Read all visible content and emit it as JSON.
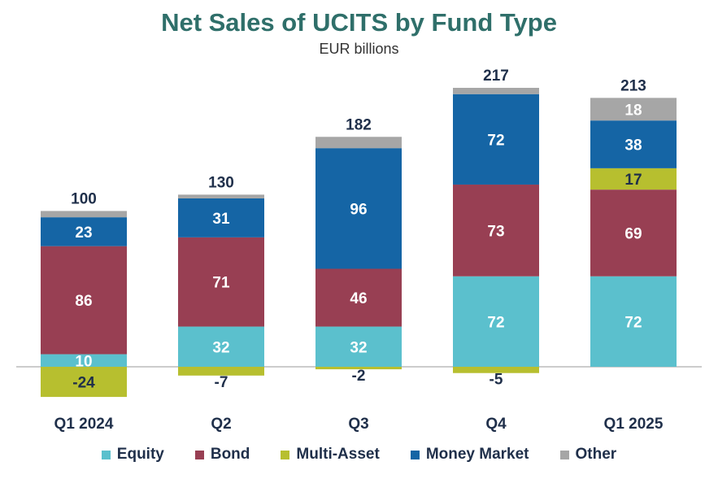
{
  "chart_data": {
    "type": "bar",
    "stacked": true,
    "title": "Net Sales of UCITS by Fund Type",
    "subtitle": "EUR billions",
    "categories": [
      "Q1 2024",
      "Q2",
      "Q3",
      "Q4",
      "Q1 2025"
    ],
    "series": [
      {
        "name": "Equity",
        "color": "#5bc0cd",
        "values": [
          10,
          32,
          32,
          72,
          72
        ],
        "labels": [
          "10",
          "32",
          "32",
          "72",
          "72"
        ]
      },
      {
        "name": "Bond",
        "color": "#983f53",
        "values": [
          86,
          71,
          46,
          73,
          69
        ],
        "labels": [
          "86",
          "71",
          "46",
          "73",
          "69"
        ]
      },
      {
        "name": "Multi-Asset",
        "color": "#b7bf2f",
        "values": [
          -24,
          -7,
          -2,
          -5,
          17
        ],
        "labels": [
          "-24",
          "-7",
          "-2",
          "-5",
          "17"
        ]
      },
      {
        "name": "Money Market",
        "color": "#1565a5",
        "values": [
          23,
          31,
          96,
          72,
          38
        ],
        "labels": [
          "23",
          "31",
          "96",
          "72",
          "38"
        ]
      },
      {
        "name": "Other",
        "color": "#a6a6a6",
        "values": [
          5,
          3,
          9,
          5,
          18
        ],
        "labels": [
          "",
          "",
          "",
          "",
          "18"
        ]
      }
    ],
    "totals": [
      "100",
      "130",
      "182",
      "217",
      "213"
    ],
    "ylim": [
      -30,
      230
    ],
    "grid": false,
    "legend": "bottom"
  },
  "colors": {
    "title": "#2f6f6a",
    "label_dark": "#1f2f4a",
    "label_light": "#ffffff",
    "zero_line": "#999999"
  }
}
